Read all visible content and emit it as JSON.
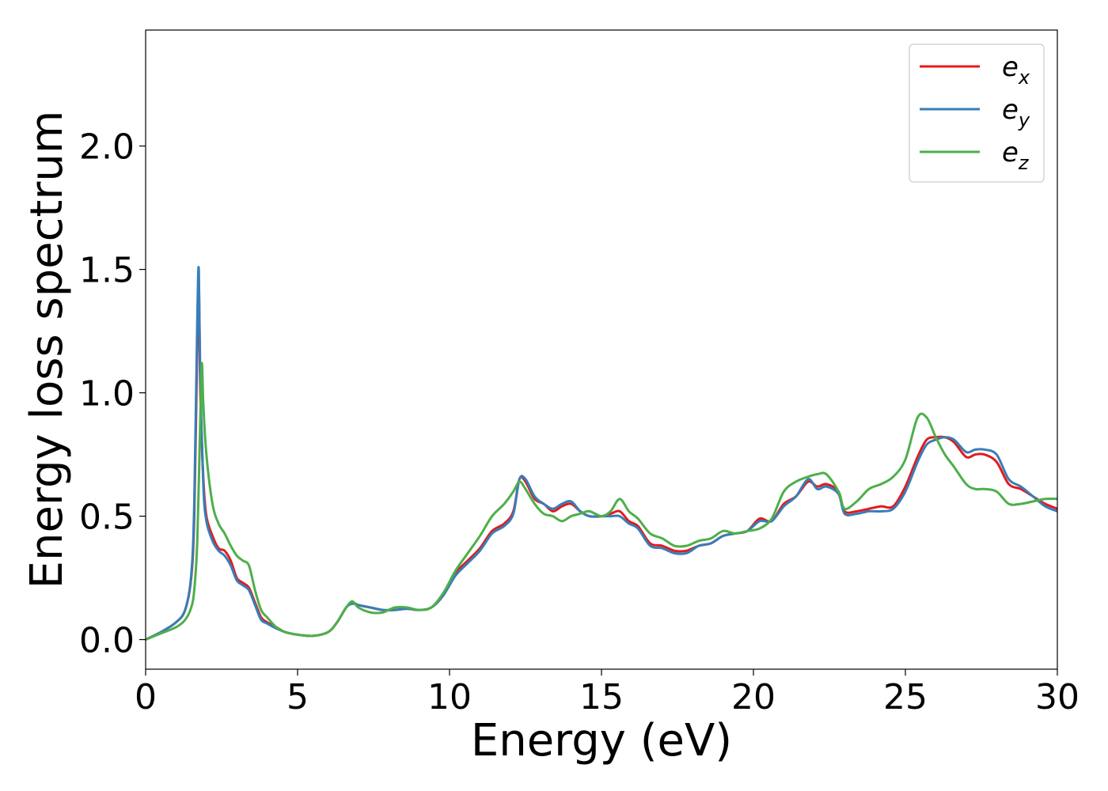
{
  "chart_data": {
    "type": "line",
    "title": "",
    "xlabel": "Energy (eV)",
    "ylabel": "Energy loss spectrum",
    "xlim": [
      0,
      30
    ],
    "ylim": [
      -0.12,
      2.47
    ],
    "xticks": [
      0,
      5,
      10,
      15,
      20,
      25,
      30
    ],
    "xtick_labels": [
      "0",
      "5",
      "10",
      "15",
      "20",
      "25",
      "30"
    ],
    "yticks": [
      0.0,
      0.5,
      1.0,
      1.5,
      2.0
    ],
    "ytick_labels": [
      "0.0",
      "0.5",
      "1.0",
      "1.5",
      "2.0"
    ],
    "grid": false,
    "legend_position": "top-right",
    "series": [
      {
        "name": "e_x",
        "label_main": "e",
        "label_sub": "x",
        "color": "#e41a1c",
        "x": [
          0,
          0.5,
          1.0,
          1.3,
          1.5,
          1.6,
          1.7,
          1.75,
          1.8,
          1.9,
          2.0,
          2.2,
          2.4,
          2.6,
          2.8,
          3.0,
          3.2,
          3.4,
          3.6,
          3.8,
          4.0,
          4.3,
          4.6,
          5.0,
          5.5,
          6.0,
          6.3,
          6.6,
          6.8,
          7.0,
          7.4,
          7.8,
          8.2,
          8.6,
          9.0,
          9.4,
          9.8,
          10.2,
          10.6,
          11.0,
          11.4,
          11.8,
          12.1,
          12.3,
          12.5,
          12.8,
          13.1,
          13.4,
          13.7,
          14.0,
          14.3,
          14.6,
          15.0,
          15.3,
          15.6,
          15.9,
          16.2,
          16.6,
          17.0,
          17.4,
          17.8,
          18.2,
          18.6,
          19.0,
          19.4,
          19.8,
          20.2,
          20.6,
          21.0,
          21.4,
          21.8,
          22.1,
          22.4,
          22.8,
          23.0,
          23.4,
          23.8,
          24.2,
          24.6,
          25.0,
          25.4,
          25.7,
          26.0,
          26.3,
          26.6,
          27.0,
          27.3,
          27.6,
          28.0,
          28.4,
          28.8,
          29.2,
          29.6,
          30.0
        ],
        "y": [
          0.0,
          0.03,
          0.07,
          0.12,
          0.25,
          0.5,
          1.2,
          1.45,
          1.0,
          0.65,
          0.5,
          0.42,
          0.37,
          0.36,
          0.32,
          0.25,
          0.23,
          0.21,
          0.15,
          0.09,
          0.07,
          0.05,
          0.03,
          0.02,
          0.015,
          0.03,
          0.07,
          0.13,
          0.15,
          0.14,
          0.13,
          0.12,
          0.12,
          0.125,
          0.12,
          0.13,
          0.18,
          0.27,
          0.32,
          0.37,
          0.44,
          0.47,
          0.52,
          0.65,
          0.64,
          0.57,
          0.55,
          0.52,
          0.54,
          0.55,
          0.52,
          0.5,
          0.5,
          0.51,
          0.52,
          0.48,
          0.46,
          0.39,
          0.38,
          0.36,
          0.36,
          0.38,
          0.39,
          0.42,
          0.43,
          0.44,
          0.49,
          0.48,
          0.55,
          0.58,
          0.64,
          0.62,
          0.63,
          0.6,
          0.52,
          0.52,
          0.53,
          0.54,
          0.54,
          0.62,
          0.74,
          0.81,
          0.82,
          0.82,
          0.8,
          0.74,
          0.75,
          0.75,
          0.72,
          0.63,
          0.61,
          0.58,
          0.55,
          0.53
        ]
      },
      {
        "name": "e_y",
        "label_main": "e",
        "label_sub": "y",
        "color": "#377eb8",
        "x": [
          0,
          0.5,
          1.0,
          1.3,
          1.5,
          1.6,
          1.7,
          1.75,
          1.8,
          1.9,
          2.0,
          2.2,
          2.4,
          2.6,
          2.8,
          3.0,
          3.2,
          3.4,
          3.6,
          3.8,
          4.0,
          4.3,
          4.6,
          5.0,
          5.5,
          6.0,
          6.3,
          6.6,
          6.8,
          7.0,
          7.4,
          7.8,
          8.2,
          8.6,
          9.0,
          9.4,
          9.8,
          10.2,
          10.6,
          11.0,
          11.4,
          11.8,
          12.1,
          12.3,
          12.5,
          12.8,
          13.1,
          13.4,
          13.7,
          14.0,
          14.3,
          14.6,
          15.0,
          15.3,
          15.6,
          15.9,
          16.2,
          16.6,
          17.0,
          17.4,
          17.8,
          18.2,
          18.6,
          19.0,
          19.4,
          19.8,
          20.2,
          20.6,
          21.0,
          21.4,
          21.8,
          22.1,
          22.4,
          22.8,
          23.0,
          23.4,
          23.8,
          24.2,
          24.6,
          25.0,
          25.4,
          25.7,
          26.0,
          26.3,
          26.6,
          27.0,
          27.3,
          27.6,
          28.0,
          28.4,
          28.8,
          29.2,
          29.6,
          30.0
        ],
        "y": [
          0.0,
          0.03,
          0.07,
          0.12,
          0.26,
          0.55,
          1.3,
          1.5,
          1.05,
          0.62,
          0.48,
          0.4,
          0.36,
          0.34,
          0.3,
          0.24,
          0.22,
          0.2,
          0.14,
          0.08,
          0.065,
          0.045,
          0.03,
          0.02,
          0.015,
          0.03,
          0.07,
          0.13,
          0.145,
          0.14,
          0.13,
          0.12,
          0.12,
          0.125,
          0.12,
          0.13,
          0.18,
          0.26,
          0.31,
          0.36,
          0.43,
          0.46,
          0.51,
          0.65,
          0.65,
          0.58,
          0.55,
          0.53,
          0.55,
          0.56,
          0.52,
          0.5,
          0.5,
          0.5,
          0.5,
          0.47,
          0.45,
          0.38,
          0.37,
          0.35,
          0.35,
          0.38,
          0.39,
          0.42,
          0.43,
          0.44,
          0.48,
          0.48,
          0.54,
          0.58,
          0.65,
          0.61,
          0.62,
          0.59,
          0.51,
          0.51,
          0.52,
          0.52,
          0.53,
          0.6,
          0.72,
          0.79,
          0.81,
          0.82,
          0.81,
          0.76,
          0.77,
          0.77,
          0.75,
          0.65,
          0.62,
          0.58,
          0.54,
          0.52
        ]
      },
      {
        "name": "e_z",
        "label_main": "e",
        "label_sub": "z",
        "color": "#4daf4a",
        "x": [
          0,
          0.5,
          1.0,
          1.3,
          1.5,
          1.6,
          1.7,
          1.8,
          1.85,
          1.9,
          2.0,
          2.2,
          2.4,
          2.6,
          2.8,
          3.0,
          3.2,
          3.4,
          3.6,
          3.8,
          4.0,
          4.3,
          4.6,
          5.0,
          5.5,
          6.0,
          6.3,
          6.6,
          6.8,
          7.0,
          7.4,
          7.8,
          8.2,
          8.6,
          9.0,
          9.4,
          9.8,
          10.2,
          10.6,
          11.0,
          11.4,
          11.8,
          12.1,
          12.3,
          12.5,
          12.8,
          13.1,
          13.4,
          13.7,
          14.0,
          14.3,
          14.6,
          15.0,
          15.3,
          15.6,
          15.9,
          16.2,
          16.6,
          17.0,
          17.4,
          17.8,
          18.2,
          18.6,
          19.0,
          19.4,
          19.8,
          20.2,
          20.6,
          21.0,
          21.4,
          21.8,
          22.1,
          22.4,
          22.8,
          23.0,
          23.4,
          23.8,
          24.2,
          24.6,
          25.0,
          25.4,
          25.7,
          26.0,
          26.3,
          26.6,
          27.0,
          27.3,
          27.6,
          28.0,
          28.4,
          28.8,
          29.2,
          29.6,
          30.0
        ],
        "y": [
          0.0,
          0.025,
          0.05,
          0.08,
          0.13,
          0.2,
          0.4,
          0.9,
          1.12,
          0.95,
          0.75,
          0.55,
          0.47,
          0.43,
          0.38,
          0.34,
          0.32,
          0.3,
          0.2,
          0.12,
          0.09,
          0.05,
          0.03,
          0.02,
          0.015,
          0.03,
          0.07,
          0.13,
          0.155,
          0.13,
          0.11,
          0.11,
          0.13,
          0.13,
          0.12,
          0.13,
          0.19,
          0.28,
          0.35,
          0.42,
          0.5,
          0.55,
          0.6,
          0.64,
          0.61,
          0.55,
          0.51,
          0.5,
          0.48,
          0.5,
          0.51,
          0.52,
          0.5,
          0.52,
          0.57,
          0.52,
          0.49,
          0.43,
          0.41,
          0.38,
          0.38,
          0.4,
          0.41,
          0.44,
          0.43,
          0.44,
          0.45,
          0.49,
          0.6,
          0.64,
          0.66,
          0.67,
          0.67,
          0.6,
          0.53,
          0.56,
          0.61,
          0.63,
          0.66,
          0.73,
          0.9,
          0.9,
          0.82,
          0.75,
          0.7,
          0.63,
          0.61,
          0.61,
          0.6,
          0.55,
          0.55,
          0.56,
          0.57,
          0.57
        ]
      }
    ]
  }
}
